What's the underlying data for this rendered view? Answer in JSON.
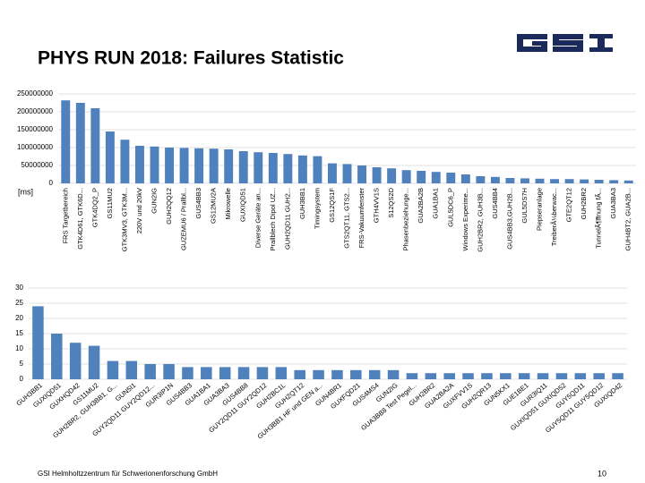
{
  "title": "PHYS RUN 2018: Failures Statistic",
  "footer": "GSI Helmholtzzentrum für Schwerionenforschung GmbH",
  "page_number": "10",
  "chart_data": [
    {
      "type": "bar",
      "y_label": "[ms]",
      "color": "#4f81bd",
      "grid": true,
      "categories": [
        "FRS Targetbereich",
        "GTK4D61, GTK6D...",
        "GTK4DQ2_P",
        "GS11MU2",
        "GTK3MV3, GTK3M...",
        "220V und 20kV",
        "GUN2IG",
        "GUH2QQ12",
        "GUZEMU6 / Prallbl...",
        "GUS4BB3",
        "GS12MU2A",
        "Mikrowelle",
        "GUXIQD51",
        "Diverse Geräte an...",
        "Prallblech Dipol UZ...",
        "GUH2QD11 GUH2...",
        "GUH3BB1",
        "Timingsystem",
        "GS12QS1F",
        "GTS2QT11, GTS2...",
        "FRS-Vakuumfenster",
        "GTH4VV1S",
        "S12QS2D",
        "Phasenbeziehunge...",
        "GUA2BA2B",
        "GUA1BA1",
        "GUL5DC6_P",
        "Windows Experime...",
        "GUH2BR2, GUH3B...",
        "GUS4BB4",
        "GUS4BB3,GUH2B...",
        "GUL5DS7H",
        "Piepseranlage",
        "TreiberÃ¼berwac...",
        "GTE2QT12",
        "GUH2BR2",
        "TunnelÃ¶ffnung fÃ...",
        "GUA3BA3",
        "GUH4BT2, GUA2B..."
      ],
      "values": [
        232000000,
        225000000,
        210000000,
        145000000,
        122000000,
        105000000,
        103000000,
        100000000,
        99000000,
        98000000,
        97000000,
        95000000,
        90000000,
        87000000,
        85000000,
        82000000,
        78000000,
        76000000,
        56000000,
        54000000,
        50000000,
        45000000,
        42000000,
        37000000,
        35000000,
        32000000,
        30000000,
        25000000,
        20000000,
        18000000,
        15000000,
        14000000,
        13000000,
        12000000,
        12000000,
        11000000,
        10000000,
        9000000,
        8000000
      ],
      "ylim": [
        0,
        250000000
      ],
      "yticks": [
        0,
        50000000,
        100000000,
        150000000,
        200000000,
        250000000
      ]
    },
    {
      "type": "bar",
      "color": "#4f81bd",
      "grid": true,
      "categories": [
        "GUH3BB1",
        "GUXIQD51",
        "GUXHQD42",
        "GS11MU2",
        "GUH2BR2, GUH3BB1, G...",
        "GUN5I1",
        "GUY2QD11 GUY2QD12...",
        "GUR3IP1N",
        "GUS4BB3",
        "GUA1BA1",
        "GUA3BA3",
        "GUS4BB8",
        "GUY2QD11 GUY2QD12",
        "GUH2BC1L",
        "GUH2QT12",
        "GUH3BB1 HF und GEN a...",
        "GUN4BR1",
        "GUXFQD21",
        "GUS4MS4",
        "GUN2IG",
        "GUA3BB8 Test Pegel...",
        "GUH2BR2",
        "GUA2BA2A",
        "GUXFVV1S",
        "GUH2QR13",
        "GUN5KX1",
        "GUE1BE1",
        "GUR3IQ11",
        "GUXIQD51 GUXIQD52",
        "GUY5QD11",
        "GUY5QD11 GUY5QD12",
        "GUXIQD42"
      ],
      "values": [
        24,
        15,
        12,
        11,
        6,
        6,
        5,
        5,
        4,
        4,
        4,
        4,
        4,
        4,
        3,
        3,
        3,
        3,
        3,
        3,
        2,
        2,
        2,
        2,
        2,
        2,
        2,
        2,
        2,
        2,
        2,
        2
      ],
      "ylim": [
        0,
        30
      ],
      "yticks": [
        0,
        5,
        10,
        15,
        20,
        25,
        30
      ]
    }
  ]
}
